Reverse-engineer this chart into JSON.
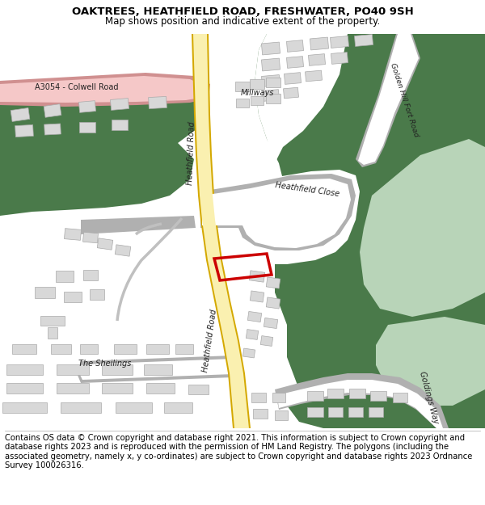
{
  "title_line1": "OAKTREES, HEATHFIELD ROAD, FRESHWATER, PO40 9SH",
  "title_line2": "Map shows position and indicative extent of the property.",
  "footer_text": "Contains OS data © Crown copyright and database right 2021. This information is subject to Crown copyright and database rights 2023 and is reproduced with the permission of HM Land Registry. The polygons (including the associated geometry, namely x, y co-ordinates) are subject to Crown copyright and database rights 2023 Ordnance Survey 100026316.",
  "bg_color": "#ffffff",
  "map_bg": "#ffffff",
  "road_yellow_fill": "#faf0b0",
  "road_yellow_edge": "#d4a800",
  "green_dark": "#4a7a4a",
  "green_light": "#8fbc8f",
  "green_pale": "#b8d4b8",
  "building_color": "#d8d8d8",
  "building_outline": "#aaaaaa",
  "road_gray": "#e8e8e8",
  "road_gray_edge": "#b0b0b0",
  "pink_road": "#f5c8c8",
  "pink_road_edge": "#d09090",
  "plot_outline": "#cc0000",
  "title_fontsize": 9.5,
  "subtitle_fontsize": 8.5,
  "footer_fontsize": 7.2,
  "label_fontsize": 7,
  "figsize": [
    6.0,
    6.25
  ],
  "dpi": 100
}
